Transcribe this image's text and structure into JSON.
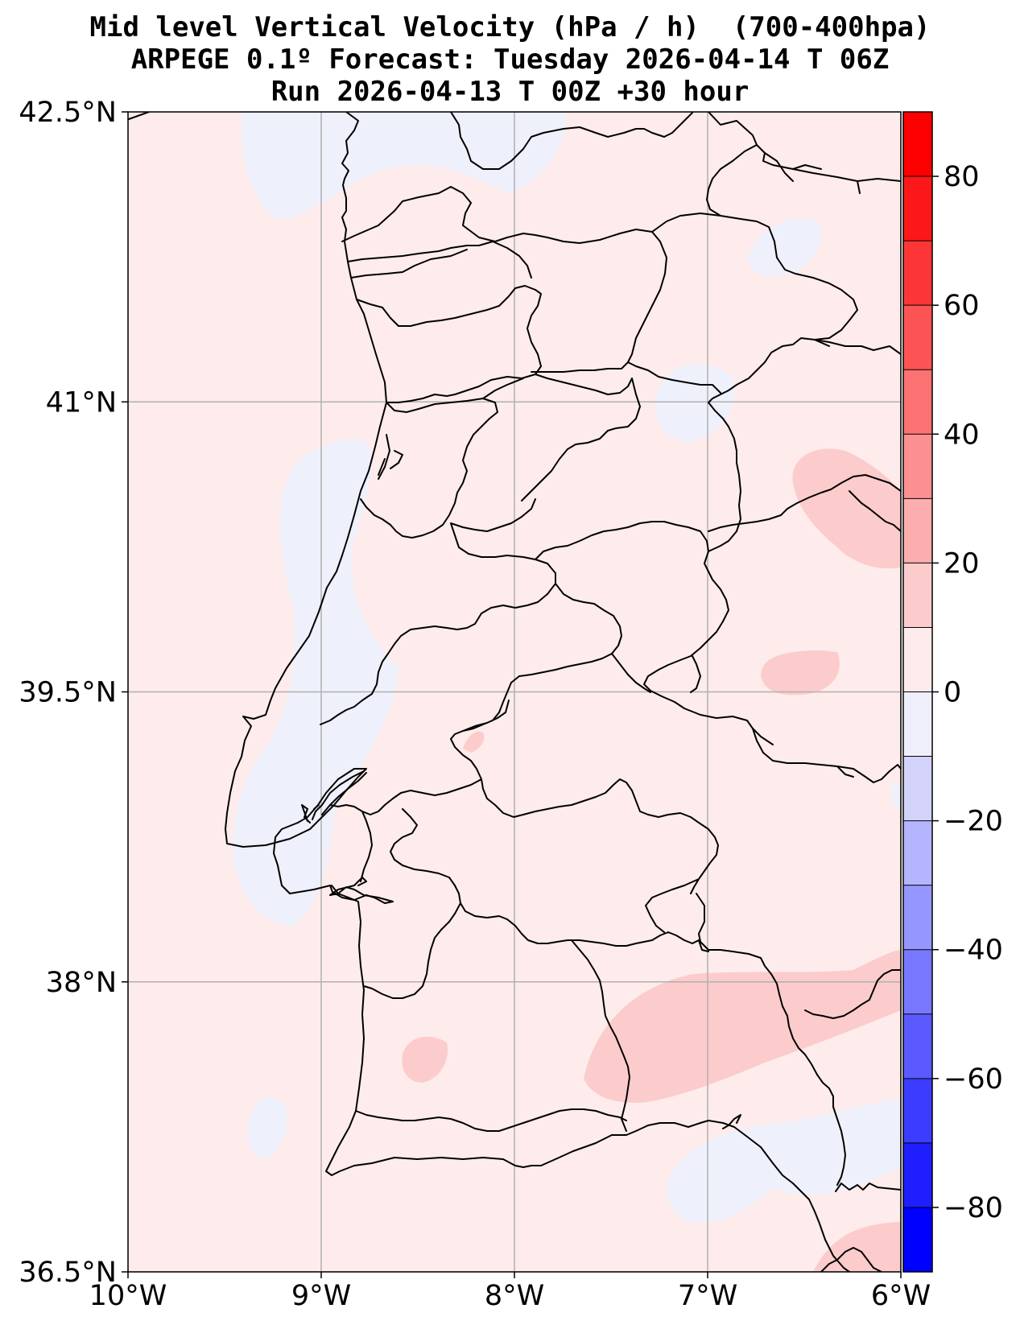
{
  "title": {
    "line1": "Mid level Vertical Velocity (hPa / h)  (700-400hpa)",
    "line2": "ARPEGE 0.1º Forecast: Tuesday 2026-04-14 T 06Z",
    "line3": "Run 2026-04-13 T 00Z +30 hour"
  },
  "map": {
    "extent": {
      "lon": [
        -10,
        -6
      ],
      "lat": [
        36.5,
        42.5
      ]
    },
    "lat_ticks": [
      {
        "value": 42.5,
        "label": "42.5°N"
      },
      {
        "value": 41,
        "label": "41°N"
      },
      {
        "value": 39.5,
        "label": "39.5°N"
      },
      {
        "value": 38,
        "label": "38°N"
      },
      {
        "value": 36.5,
        "label": "36.5°N"
      }
    ],
    "lon_ticks": [
      {
        "value": -10,
        "label": "10°W"
      },
      {
        "value": -9,
        "label": "9°W"
      },
      {
        "value": -8,
        "label": "8°W"
      },
      {
        "value": -7,
        "label": "7°W"
      },
      {
        "value": -6,
        "label": "6°W"
      }
    ],
    "grid": true,
    "colors": {
      "background": "#fdeceb",
      "weak_ascent": "#eef0fb",
      "weak_descent": "#fccccc",
      "gridline": "#b0b0b0",
      "boundary": "#000000"
    }
  },
  "colorbar": {
    "levels": [
      -90,
      -80,
      -70,
      -60,
      -50,
      -40,
      -30,
      -20,
      -10,
      0,
      10,
      20,
      30,
      40,
      50,
      60,
      70,
      80,
      90
    ],
    "colors": [
      "#0000ff",
      "#1e1eff",
      "#3c3cff",
      "#5a5aff",
      "#7878ff",
      "#9696ff",
      "#b4b4ff",
      "#d2d2fb",
      "#eeeffb",
      "#fdeceb",
      "#fccccc",
      "#fcaeae",
      "#fc9090",
      "#fc7272",
      "#fc5454",
      "#fc3636",
      "#fc1818",
      "#ff0000"
    ],
    "ticks": [
      {
        "value": 80,
        "label": "80"
      },
      {
        "value": 60,
        "label": "60"
      },
      {
        "value": 40,
        "label": "40"
      },
      {
        "value": 20,
        "label": "20"
      },
      {
        "value": 0,
        "label": "0"
      },
      {
        "value": -20,
        "label": "−20"
      },
      {
        "value": -40,
        "label": "−40"
      },
      {
        "value": -60,
        "label": "−60"
      },
      {
        "value": -80,
        "label": "−80"
      }
    ]
  }
}
